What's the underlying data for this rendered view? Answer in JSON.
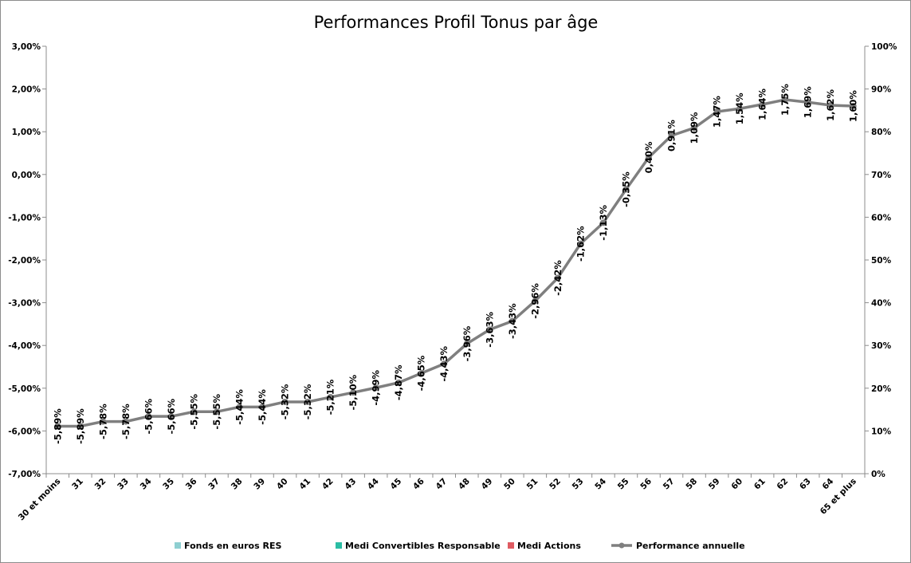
{
  "chart_data": {
    "type": "bar",
    "stacked": true,
    "title": "Performances Profil Tonus par âge",
    "categories": [
      "30 et moins",
      "31",
      "32",
      "33",
      "34",
      "35",
      "36",
      "37",
      "38",
      "39",
      "40",
      "41",
      "42",
      "43",
      "44",
      "45",
      "46",
      "47",
      "48",
      "49",
      "50",
      "51",
      "52",
      "53",
      "54",
      "55",
      "56",
      "57",
      "58",
      "59",
      "60",
      "61",
      "62",
      "63",
      "64",
      "65 et plus"
    ],
    "y_left": {
      "ticks": [
        "3,00%",
        "2,00%",
        "1,00%",
        "0,00%",
        "-1,00%",
        "-2,00%",
        "-3,00%",
        "-4,00%",
        "-5,00%",
        "-6,00%",
        "-7,00%"
      ],
      "min": -7,
      "max": 3
    },
    "y_right": {
      "ticks": [
        "100%",
        "90%",
        "80%",
        "70%",
        "60%",
        "50%",
        "40%",
        "30%",
        "20%",
        "10%",
        "0%"
      ],
      "min": 0,
      "max": 100
    },
    "grid": false,
    "legend_position": "bottom",
    "series": [
      {
        "name": "Fonds en euros RES",
        "color": "#8ecfd1",
        "axis": "right",
        "values": [
          0,
          0,
          0,
          0,
          0,
          0,
          0,
          0,
          0,
          0,
          0,
          0,
          0,
          0,
          0,
          0,
          0,
          0,
          0,
          0,
          0,
          0,
          0,
          0,
          0,
          0,
          0,
          0,
          0,
          0,
          0,
          0,
          0,
          0,
          0,
          0
        ]
      },
      {
        "name": "Medi Convertibles Responsable",
        "color": "#2bbda4",
        "axis": "right",
        "values": [
          0,
          0,
          0,
          0,
          0,
          0,
          0,
          0,
          0,
          0,
          0,
          0,
          0,
          0,
          0,
          0,
          0,
          0,
          0,
          0,
          0,
          0,
          0,
          0,
          0,
          0,
          0,
          0,
          0,
          0,
          0,
          0,
          0,
          0,
          0,
          0
        ]
      },
      {
        "name": "Medi Actions",
        "color": "#df5b62",
        "axis": "right",
        "values": [
          0,
          0,
          0,
          0,
          0,
          0,
          0,
          0,
          0,
          0,
          0,
          0,
          0,
          0,
          0,
          0,
          0,
          0,
          0,
          0,
          0,
          0,
          0,
          0,
          0,
          0,
          0,
          0,
          0,
          0,
          0,
          0,
          0,
          0,
          0,
          0
        ]
      },
      {
        "name": "Performance annuelle",
        "type": "line",
        "color": "#7f7f7f",
        "axis": "left",
        "values": [
          -5.89,
          -5.89,
          -5.78,
          -5.78,
          -5.66,
          -5.66,
          -5.55,
          -5.55,
          -5.44,
          -5.44,
          -5.32,
          -5.32,
          -5.21,
          -5.1,
          -4.99,
          -4.87,
          -4.65,
          -4.43,
          -3.96,
          -3.63,
          -3.43,
          -2.96,
          -2.42,
          -1.62,
          -1.13,
          -0.35,
          0.4,
          0.91,
          1.09,
          1.47,
          1.54,
          1.64,
          1.75,
          1.69,
          1.62,
          1.6
        ],
        "labels": [
          "-5,89%",
          "-5,89%",
          "-5,78%",
          "-5,78%",
          "-5,66%",
          "-5,66%",
          "-5,55%",
          "-5,55%",
          "-5,44%",
          "-5,44%",
          "-5,32%",
          "-5,32%",
          "-5,21%",
          "-5,10%",
          "-4,99%",
          "-4,87%",
          "-4,65%",
          "-4,43%",
          "-3,96%",
          "-3,63%",
          "-3,43%",
          "-2,96%",
          "-2,42%",
          "-1,62%",
          "-1,13%",
          "-0,35%",
          "0,40%",
          "0,91%",
          "1,09%",
          "1,47%",
          "1,54%",
          "1,64%",
          "1,75%",
          "1,69%",
          "1,62%",
          "1,60%"
        ]
      }
    ],
    "allocation": {
      "fonds_euros": [
        0,
        0,
        0,
        0,
        0,
        0,
        0,
        0,
        0,
        0,
        0,
        0,
        0,
        0,
        0,
        0,
        0,
        0,
        0,
        0,
        0,
        0,
        0,
        0,
        0,
        0,
        0,
        0,
        0,
        0,
        0,
        0,
        0,
        0,
        0,
        0
      ],
      "convertibles": [
        0,
        0,
        0,
        0,
        0,
        0,
        0,
        0,
        0,
        0,
        0,
        0,
        0,
        0,
        0,
        0,
        0,
        0,
        0,
        0,
        0,
        0,
        0,
        0,
        0,
        0,
        0,
        0,
        0,
        0,
        0,
        0,
        0,
        0,
        0,
        0
      ]
    }
  }
}
